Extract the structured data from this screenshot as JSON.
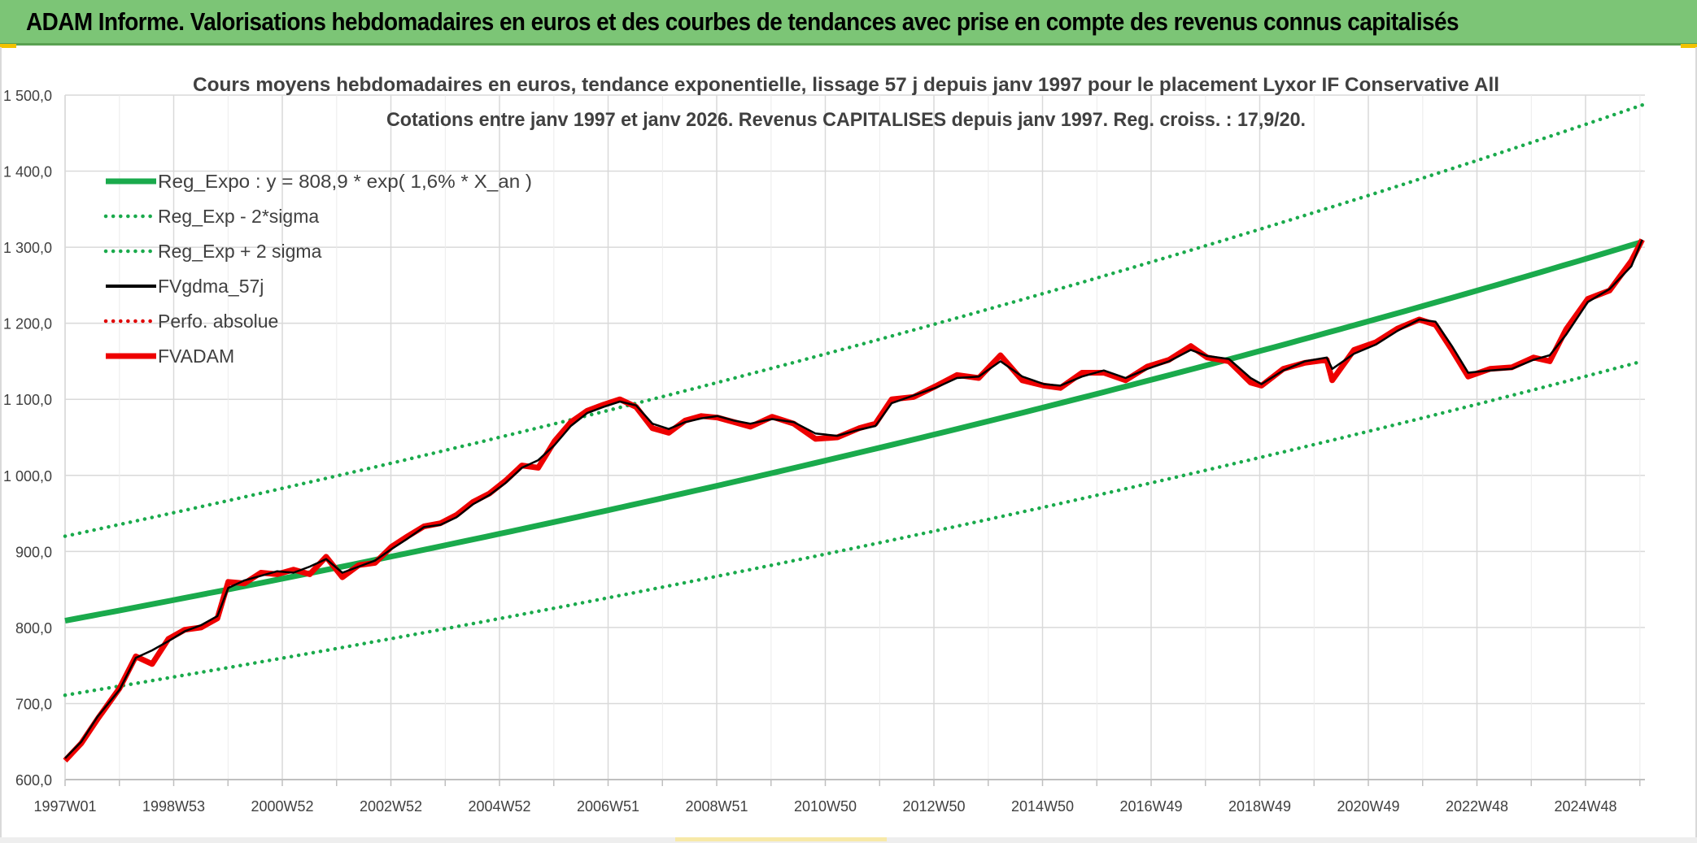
{
  "header": {
    "title": "ADAM Informe. Valorisations hebdomadaires en euros et des courbes de tendances avec prise en compte des revenus connus capitalisés"
  },
  "chart_data": {
    "type": "line",
    "title": "Cours moyens hebdomadaires en euros, tendance exponentielle, lissage 57 j depuis janv 1997 pour le placement Lyxor IF Conservative All",
    "subtitle": "Cotations entre janv 1997 et janv 2026. Revenus CAPITALISES depuis janv 1997. Reg. croiss. : 17,9/20.",
    "xlabel": "",
    "ylabel": "",
    "ylim": [
      600,
      1500
    ],
    "xlim": [
      1997.0,
      2026.05
    ],
    "grid": true,
    "legend_position": "top-left",
    "y_ticks": [
      "600,0",
      "700,0",
      "800,0",
      "900,0",
      "1 000,0",
      "1 100,0",
      "1 200,0",
      "1 300,0",
      "1 400,0",
      "1 500,0"
    ],
    "x_tick_labels": [
      "1997W01",
      "1998W53",
      "2000W52",
      "2002W52",
      "2004W52",
      "2006W51",
      "2008W51",
      "2010W50",
      "2012W50",
      "2014W50",
      "2016W49",
      "2018W49",
      "2020W49",
      "2022W48",
      "2024W48"
    ],
    "series": [
      {
        "name": "Reg_Expo : y = 808,9 * exp( 1,6% *  X_an )",
        "color": "#1aaa4c",
        "style": "solid-thick",
        "x": [
          1997.0,
          2026.0
        ],
        "values": [
          808.9,
          1307.0
        ]
      },
      {
        "name": "Reg_Exp - 2*sigma",
        "color": "#1aaa4c",
        "style": "dotted",
        "x": [
          1997.0,
          2026.0
        ],
        "values": [
          711.0,
          1150.0
        ]
      },
      {
        "name": "Reg_Exp + 2 sigma",
        "color": "#1aaa4c",
        "style": "dotted",
        "x": [
          1997.0,
          2026.0
        ],
        "values": [
          920.0,
          1487.0
        ]
      },
      {
        "name": "FVgdma_57j",
        "color": "#000000",
        "style": "solid",
        "x": [
          1997.0,
          1997.3,
          1997.6,
          1998.0,
          1998.3,
          1998.6,
          1998.9,
          1999.2,
          1999.5,
          1999.8,
          2000.0,
          2000.3,
          2000.6,
          2000.9,
          2001.2,
          2001.5,
          2001.8,
          2002.1,
          2002.4,
          2002.7,
          2003.0,
          2003.3,
          2003.6,
          2003.9,
          2004.2,
          2004.5,
          2004.8,
          2005.1,
          2005.4,
          2005.7,
          2006.0,
          2006.3,
          2006.6,
          2006.9,
          2007.2,
          2007.5,
          2007.8,
          2008.1,
          2008.4,
          2008.7,
          2009.0,
          2009.3,
          2009.6,
          2010.0,
          2010.4,
          2010.8,
          2011.2,
          2011.6,
          2011.9,
          2012.2,
          2012.6,
          2013.0,
          2013.4,
          2013.8,
          2014.2,
          2014.6,
          2015.0,
          2015.3,
          2015.7,
          2016.1,
          2016.5,
          2016.9,
          2017.3,
          2017.7,
          2018.0,
          2018.4,
          2018.8,
          2019.0,
          2019.4,
          2019.8,
          2020.2,
          2020.3,
          2020.7,
          2021.1,
          2021.5,
          2021.9,
          2022.2,
          2022.5,
          2022.8,
          2023.2,
          2023.6,
          2024.0,
          2024.3,
          2024.6,
          2025.0,
          2025.4,
          2025.8,
          2026.0
        ],
        "values": [
          628,
          650,
          683,
          718,
          760,
          770,
          782,
          795,
          803,
          815,
          852,
          862,
          868,
          874,
          872,
          880,
          890,
          872,
          880,
          888,
          903,
          917,
          932,
          935,
          945,
          962,
          974,
          990,
          1010,
          1020,
          1040,
          1065,
          1082,
          1090,
          1097,
          1092,
          1068,
          1061,
          1070,
          1075,
          1078,
          1072,
          1068,
          1074,
          1070,
          1055,
          1052,
          1060,
          1065,
          1095,
          1105,
          1115,
          1128,
          1130,
          1150,
          1130,
          1120,
          1118,
          1130,
          1138,
          1128,
          1140,
          1150,
          1165,
          1157,
          1153,
          1128,
          1120,
          1138,
          1150,
          1155,
          1140,
          1160,
          1172,
          1190,
          1205,
          1202,
          1170,
          1135,
          1138,
          1140,
          1152,
          1158,
          1185,
          1228,
          1245,
          1275,
          1310
        ]
      },
      {
        "name": "Perfo. absolue",
        "color": "#e00000",
        "style": "dotted",
        "x": [],
        "values": []
      },
      {
        "name": "FVADAM",
        "color": "#ee0000",
        "style": "solid-thick",
        "x": [
          1997.0,
          1997.3,
          1997.6,
          1998.0,
          1998.3,
          1998.6,
          1998.9,
          1999.2,
          1999.5,
          1999.8,
          2000.0,
          2000.3,
          2000.6,
          2000.9,
          2001.2,
          2001.5,
          2001.8,
          2002.1,
          2002.4,
          2002.7,
          2003.0,
          2003.3,
          2003.6,
          2003.9,
          2004.2,
          2004.5,
          2004.8,
          2005.1,
          2005.4,
          2005.7,
          2006.0,
          2006.3,
          2006.6,
          2006.9,
          2007.2,
          2007.5,
          2007.8,
          2008.1,
          2008.4,
          2008.7,
          2009.0,
          2009.3,
          2009.6,
          2010.0,
          2010.4,
          2010.8,
          2011.2,
          2011.6,
          2011.9,
          2012.2,
          2012.6,
          2013.0,
          2013.4,
          2013.8,
          2014.2,
          2014.6,
          2015.0,
          2015.3,
          2015.7,
          2016.1,
          2016.5,
          2016.9,
          2017.3,
          2017.7,
          2018.0,
          2018.4,
          2018.8,
          2019.0,
          2019.4,
          2019.8,
          2020.2,
          2020.3,
          2020.7,
          2021.1,
          2021.5,
          2021.9,
          2022.2,
          2022.5,
          2022.8,
          2023.2,
          2023.6,
          2024.0,
          2024.3,
          2024.6,
          2025.0,
          2025.4,
          2025.8,
          2026.0
        ],
        "values": [
          625,
          648,
          680,
          720,
          762,
          752,
          785,
          797,
          800,
          812,
          860,
          858,
          872,
          870,
          876,
          870,
          893,
          866,
          882,
          885,
          906,
          920,
          933,
          937,
          948,
          965,
          976,
          993,
          1013,
          1010,
          1045,
          1070,
          1085,
          1093,
          1100,
          1090,
          1062,
          1056,
          1072,
          1078,
          1076,
          1070,
          1064,
          1077,
          1068,
          1048,
          1050,
          1062,
          1068,
          1100,
          1103,
          1117,
          1132,
          1128,
          1158,
          1125,
          1118,
          1115,
          1135,
          1135,
          1125,
          1143,
          1152,
          1170,
          1155,
          1150,
          1122,
          1118,
          1140,
          1148,
          1152,
          1125,
          1165,
          1175,
          1193,
          1205,
          1198,
          1165,
          1130,
          1140,
          1142,
          1155,
          1150,
          1192,
          1232,
          1243,
          1282,
          1310
        ]
      }
    ]
  }
}
